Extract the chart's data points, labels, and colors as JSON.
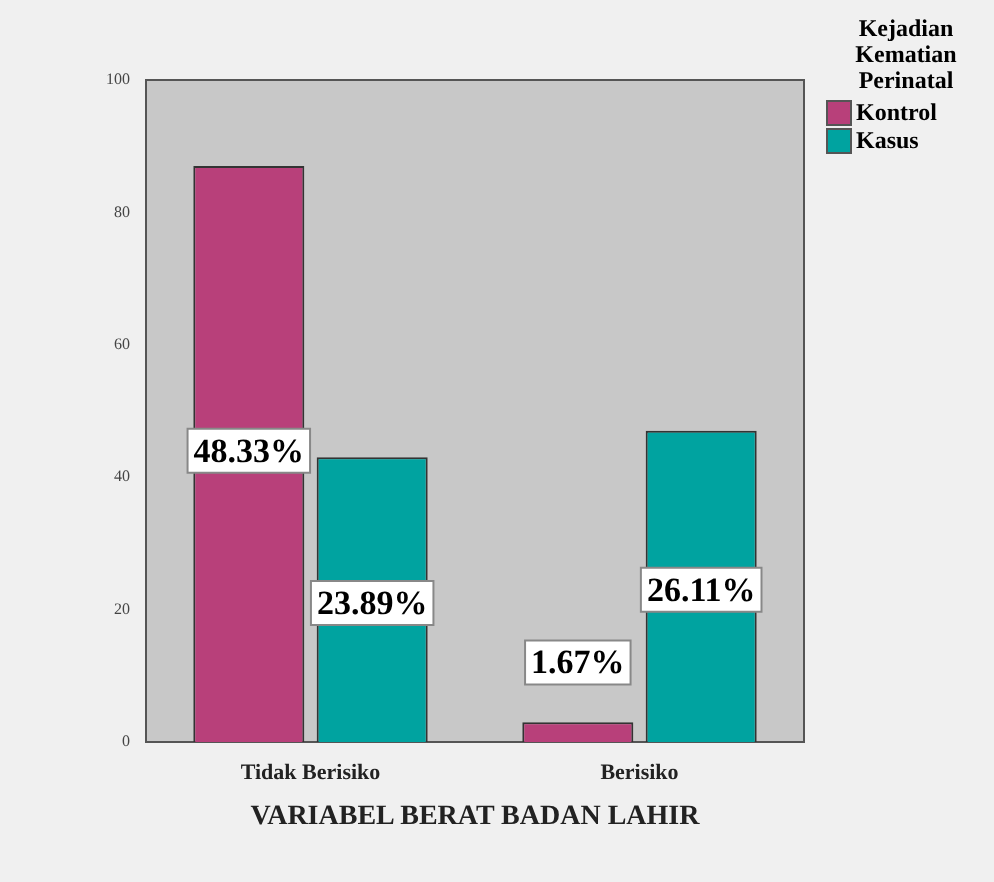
{
  "chart_data": {
    "type": "bar",
    "xlabel": "VARIABEL BERAT BADAN LAHIR",
    "legend_title": "Kejadian Kematian Perinatal",
    "categories": [
      "Tidak Berisiko",
      "Berisiko"
    ],
    "series": [
      {
        "name": "Kontrol",
        "color": "#b8407a",
        "values": [
          87,
          3
        ]
      },
      {
        "name": "Kasus",
        "color": "#00a3a0",
        "values": [
          43,
          47
        ]
      }
    ],
    "annotations": [
      {
        "text": "48.33%",
        "x": "Tidak Berisiko",
        "y": 44
      },
      {
        "text": "23.89%",
        "x": "Tidak Berisiko",
        "y": 21
      },
      {
        "text": "1.67%",
        "x": "Berisiko",
        "y": 12
      },
      {
        "text": "26.11%",
        "x": "Berisiko",
        "y": 23
      }
    ],
    "ylim": [
      0,
      100
    ],
    "yticks": [
      0,
      20,
      40,
      60,
      80,
      100
    ],
    "grid": false,
    "legend": "top right"
  }
}
